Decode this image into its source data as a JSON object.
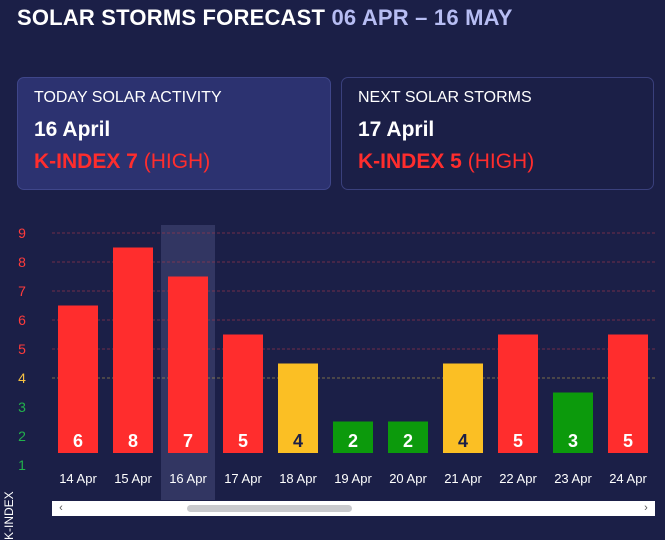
{
  "header": {
    "title_main": "SOLAR STORMS FORECAST",
    "title_range": "06 APR – 16 MAY"
  },
  "today": {
    "heading": "TODAY SOLAR ACTIVITY",
    "date": "16 April",
    "k_label": "K-INDEX 7",
    "k_level": "(HIGH)"
  },
  "next": {
    "heading": "NEXT SOLAR STORMS",
    "date": "17 April",
    "k_label": "K-INDEX 5",
    "k_level": "(HIGH)"
  },
  "colors": {
    "high": "#ff2d2d",
    "moderate": "#fbbf24",
    "low": "#0c9a0c",
    "tick_high": "#ff3b3b",
    "tick_moderate": "#f6c143",
    "tick_low": "#22b14c",
    "highlight": "#3b3f6b"
  },
  "chart_data": {
    "type": "bar",
    "ylabel": "K-INDEX",
    "ylim": [
      1,
      9
    ],
    "yticks": [
      1,
      2,
      3,
      4,
      5,
      6,
      7,
      8,
      9
    ],
    "grid": "dashed horizontal lines at 4–9",
    "categories": [
      "14 Apr",
      "15 Apr",
      "16 Apr",
      "17 Apr",
      "18 Apr",
      "19 Apr",
      "20 Apr",
      "21 Apr",
      "22 Apr",
      "23 Apr",
      "24 Apr"
    ],
    "values": [
      6,
      8,
      7,
      5,
      4,
      2,
      2,
      4,
      5,
      3,
      5
    ],
    "highlighted_category": "16 Apr"
  }
}
